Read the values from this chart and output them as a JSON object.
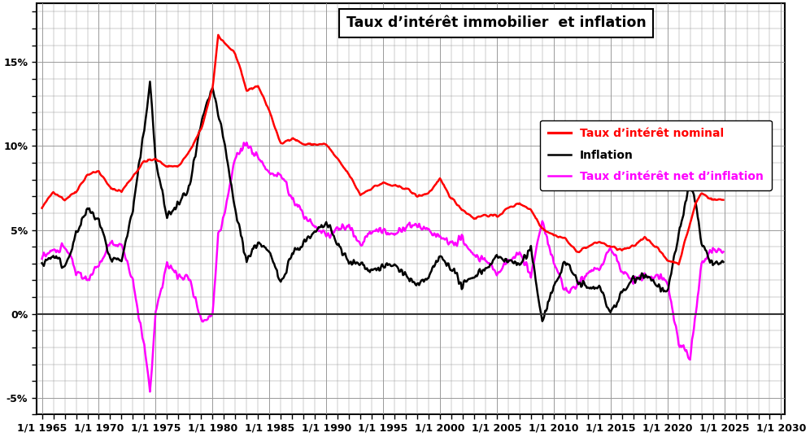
{
  "title": "Taux d’intérêt immobilier  et inflation",
  "legend_entries": [
    "Taux d’intérêt nominal",
    "Inflation",
    "Taux d’intérêt net d’inflation"
  ],
  "legend_colors": [
    "#ff0000",
    "#000000",
    "#ff00ff"
  ],
  "colors": {
    "nominal": "#ff0000",
    "inflation": "#000000",
    "real": "#ff00ff"
  },
  "ylim": [
    -0.06,
    0.185
  ],
  "yticks": [
    -0.05,
    0.0,
    0.05,
    0.1,
    0.15
  ],
  "yticklabels": [
    "-5%",
    "0%",
    "5%",
    "10%",
    "15%"
  ],
  "xlim_start": 1964.5,
  "xlim_end": 2030.3,
  "xtick_years": [
    1965,
    1970,
    1975,
    1980,
    1985,
    1990,
    1995,
    2000,
    2005,
    2010,
    2015,
    2020,
    2025,
    2030
  ],
  "line_width": 1.8,
  "background_color": "#ffffff",
  "grid_color": "#999999"
}
